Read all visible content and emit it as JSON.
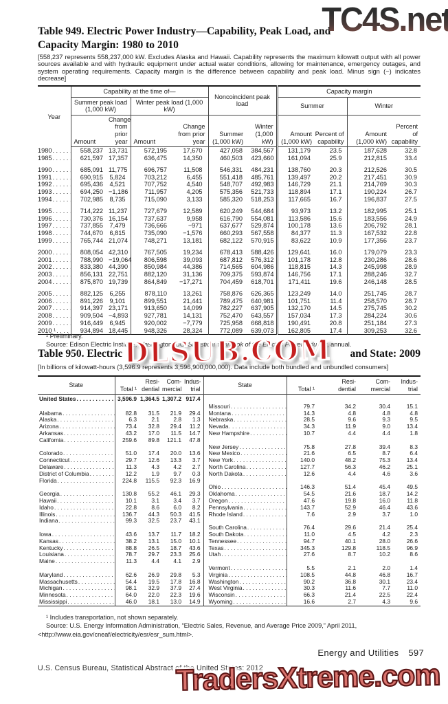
{
  "watermarks": {
    "top_right": "TC4S.net",
    "middle": "DLSUB.COM",
    "bottom": "TradersXtreme.com"
  },
  "colors": {
    "watermark_red": "#c51f1f",
    "watermark_salmon": "#d9736d",
    "watermark_dark_red": "#5c1616",
    "watermark_gray": "#2e2e2e"
  },
  "dot_leader": ". . . . . . . . . . . . . . . . . . . . . . . . . . . . . . . . . . . . . . . .",
  "table949": {
    "title_line1": "Table 949. Electric Power Industry—Capability, Peak Load, and",
    "title_line2": "Capacity Margin: 1980 to 2010",
    "note": "[558,237 represents 558,237,000 kW. Excludes Alaska and Hawaii. Capability represents the maximum kilowatt output with all power sources available and with hydraulic equipment under actual water conditions, allowing for maintenance, emergency outages, and system operating requirements. Capacity margin is the difference between capability and peak load. Minus sign (−) indicates decrease]",
    "header": {
      "year": "Year",
      "capability_group": "Capability at the time of—",
      "noncoincident_group": "Noncoincident peak load",
      "capacity_margin_group": "Capacity margin",
      "summer_peak": "Summer peak load (1,000 kW)",
      "winter_peak": "Winter peak load (1,000 kW)",
      "summer": "Summer",
      "winter": "Winter",
      "amount": "Amount",
      "change": "Change from prior year",
      "summer_kw": "Summer (1,000 kW)",
      "winter_kw": "Winter (1,000 kW)",
      "amount_kw": "Amount (1,000 kW)",
      "percent": "Percent of capability"
    },
    "group_starts": [
      2,
      7,
      12,
      17
    ],
    "rows": [
      [
        "1980",
        "558,237",
        "13,731",
        "572,195",
        "17,670",
        "427,058",
        "384,567",
        "131,179",
        "23.5",
        "187,628",
        "32.8"
      ],
      [
        "1985",
        "621,597",
        "17,357",
        "636,475",
        "14,350",
        "460,503",
        "423,660",
        "161,094",
        "25.9",
        "212,815",
        "33.4"
      ],
      [
        "1990",
        "685,091",
        "11,775",
        "696,757",
        "11,508",
        "546,331",
        "484,231",
        "138,760",
        "20.3",
        "212,526",
        "30.5"
      ],
      [
        "1991",
        "690,915",
        "5,824",
        "703,212",
        "6,455",
        "551,418",
        "485,761",
        "139,497",
        "20.2",
        "217,451",
        "30.9"
      ],
      [
        "1992",
        "695,436",
        "4,521",
        "707,752",
        "4,540",
        "548,707",
        "492,983",
        "146,729",
        "21.1",
        "214,769",
        "30.3"
      ],
      [
        "1993",
        "694,250",
        "−1,186",
        "711,957",
        "4,205",
        "575,356",
        "521,733",
        "118,894",
        "17.1",
        "190,224",
        "26.7"
      ],
      [
        "1994",
        "702,985",
        "8,735",
        "715,090",
        "3,133",
        "585,320",
        "518,253",
        "117,665",
        "16.7",
        "196,837",
        "27.5"
      ],
      [
        "1995",
        "714,222",
        "11,237",
        "727,679",
        "12,589",
        "620,249",
        "544,684",
        "93,973",
        "13.2",
        "182,995",
        "25.1"
      ],
      [
        "1996",
        "730,376",
        "16,154",
        "737,637",
        "9,958",
        "616,790",
        "554,081",
        "113,586",
        "15.6",
        "183,556",
        "24.9"
      ],
      [
        "1997",
        "737,855",
        "7,479",
        "736,666",
        "−971",
        "637,677",
        "529,874",
        "100,178",
        "13.6",
        "206,792",
        "28.1"
      ],
      [
        "1998",
        "744,670",
        "6,815",
        "735,090",
        "−1,576",
        "660,293",
        "567,558",
        "84,377",
        "11.3",
        "167,532",
        "22.8"
      ],
      [
        "1999",
        "765,744",
        "21,074",
        "748,271",
        "13,181",
        "682,122",
        "570,915",
        "83,622",
        "10.9",
        "177,356",
        "23.7"
      ],
      [
        "2000",
        "808,054",
        "42,310",
        "767,505",
        "19,234",
        "678,413",
        "588,426",
        "129,641",
        "16.0",
        "179,079",
        "23.3"
      ],
      [
        "2001",
        "788,990",
        "−19,064",
        "806,598",
        "39,093",
        "687,812",
        "576,312",
        "101,178",
        "12.8",
        "230,286",
        "28.6"
      ],
      [
        "2002",
        "833,380",
        "44,390",
        "850,984",
        "44,386",
        "714,565",
        "604,986",
        "118,815",
        "14.3",
        "245,998",
        "28.9"
      ],
      [
        "2003",
        "856,131",
        "22,751",
        "882,120",
        "31,136",
        "709,375",
        "593,874",
        "146,756",
        "17.1",
        "288,246",
        "32.7"
      ],
      [
        "2004",
        "875,870",
        "19,739",
        "864,849",
        "−17,271",
        "704,459",
        "618,701",
        "171,411",
        "19.6",
        "246,148",
        "28.5"
      ],
      [
        "2005",
        "882,125",
        "6,255",
        "878,110",
        "13,261",
        "758,876",
        "626,365",
        "123,249",
        "14.0",
        "251,745",
        "28.7"
      ],
      [
        "2006",
        "891,226",
        "9,101",
        "899,551",
        "21,441",
        "789,475",
        "640,981",
        "101,751",
        "11.4",
        "258,570",
        "28.7"
      ],
      [
        "2007",
        "914,397",
        "23,171",
        "913,650",
        "14,099",
        "782,227",
        "637,905",
        "132,170",
        "14.5",
        "275,745",
        "30.2"
      ],
      [
        "2008",
        "909,504",
        "−4,893",
        "927,781",
        "14,131",
        "752,470",
        "643,557",
        "157,034",
        "17.3",
        "284,224",
        "30.6"
      ],
      [
        "2009",
        "916,449",
        "6,945",
        "920,002",
        "−7,779",
        "725,958",
        "668,818",
        "190,491",
        "20.8",
        "251,184",
        "27.3"
      ],
      [
        "2010 ¹",
        "934,894",
        "18,445",
        "948,326",
        "28,324",
        "772,089",
        "639,073",
        "162,805",
        "17.4",
        "309,253",
        "32.6"
      ]
    ],
    "footnote": "¹ Preliminary.",
    "source_prefix": "Source: Edison Electric Institute, Washington, DC, ",
    "source_italic": "Statistical Yearbook of the Electric Power Industry",
    "source_suffix": ", annual."
  },
  "table950": {
    "title_left": "Table 950. Electric",
    "title_right": "and State: 2009",
    "note": "[In billions of kilowatt-hours (3,596.9 represents 3,596,900,000,000). Data include both bundled and unbundled consumers]",
    "header": {
      "state": "State",
      "total": "Total ¹",
      "res1": "Resi-",
      "res2": "dential",
      "com1": "Com-",
      "com2": "mercial",
      "ind1": "Indus-",
      "ind2": "trial"
    },
    "rows": [
      [
        "United States",
        "3,596.9",
        "1,364.5",
        "1,307.2",
        "917.4",
        "",
        "",
        "",
        "",
        ""
      ],
      [
        "",
        "",
        "",
        "",
        "",
        "Missouri",
        "79.7",
        "34.2",
        "30.4",
        "15.1"
      ],
      [
        "Alabama",
        "82.8",
        "31.5",
        "21.9",
        "29.4",
        "Montana",
        "14.3",
        "4.8",
        "4.8",
        "4.8"
      ],
      [
        "Alaska",
        "6.3",
        "2.1",
        "2.8",
        "1.3",
        "Nebraska",
        "28.5",
        "9.6",
        "9.3",
        "9.5"
      ],
      [
        "Arizona",
        "73.4",
        "32.8",
        "29.4",
        "11.2",
        "Nevada",
        "34.3",
        "11.9",
        "9.0",
        "13.4"
      ],
      [
        "Arkansas",
        "43.2",
        "17.0",
        "11.5",
        "14.7",
        "New Hampshire",
        "10.7",
        "4.4",
        "4.4",
        "1.8"
      ],
      [
        "California",
        "259.6",
        "89.8",
        "121.1",
        "47.8",
        "",
        "",
        "",
        "",
        ""
      ],
      [
        "",
        "",
        "",
        "",
        "",
        "New Jersey",
        "75.8",
        "27.8",
        "39.4",
        "8.3"
      ],
      [
        "Colorado",
        "51.0",
        "17.4",
        "20.0",
        "13.6",
        "New Mexico",
        "21.6",
        "6.5",
        "8.7",
        "6.4"
      ],
      [
        "Connecticut",
        "29.7",
        "12.6",
        "13.3",
        "3.7",
        "New York",
        "140.0",
        "48.2",
        "75.3",
        "13.4"
      ],
      [
        "Delaware",
        "11.3",
        "4.3",
        "4.2",
        "2.7",
        "North Carolina",
        "127.7",
        "56.3",
        "46.2",
        "25.1"
      ],
      [
        "District of Columbia",
        "12.2",
        "1.9",
        "9.7",
        "0.3",
        "North Dakota",
        "12.6",
        "4.4",
        "4.6",
        "3.6"
      ],
      [
        "Florida",
        "224.8",
        "115.5",
        "92.3",
        "16.9",
        "",
        "",
        "",
        "",
        ""
      ],
      [
        "",
        "",
        "",
        "",
        "",
        "Ohio",
        "146.3",
        "51.4",
        "45.4",
        "49.5"
      ],
      [
        "Georgia",
        "130.8",
        "55.2",
        "46.1",
        "29.3",
        "Oklahoma",
        "54.5",
        "21.6",
        "18.7",
        "14.2"
      ],
      [
        "Hawaii",
        "10.1",
        "3.1",
        "3.4",
        "3.7",
        "Oregon",
        "47.6",
        "19.8",
        "16.0",
        "11.8"
      ],
      [
        "Idaho",
        "22.8",
        "8.6",
        "6.0",
        "8.2",
        "Pennsylvania",
        "143.7",
        "52.9",
        "46.4",
        "43.6"
      ],
      [
        "Illinois",
        "136.7",
        "44.3",
        "50.3",
        "41.5",
        "Rhode Island",
        "7.6",
        "2.9",
        "3.7",
        "1.0"
      ],
      [
        "Indiana",
        "99.3",
        "32.5",
        "23.7",
        "43.1",
        "",
        "",
        "",
        "",
        ""
      ],
      [
        "",
        "",
        "",
        "",
        "",
        "South Carolina",
        "76.4",
        "29.6",
        "21.4",
        "25.4"
      ],
      [
        "Iowa",
        "43.6",
        "13.7",
        "11.7",
        "18.2",
        "South Dakota",
        "11.0",
        "4.5",
        "4.2",
        "2.3"
      ],
      [
        "Kansas",
        "38.2",
        "13.1",
        "15.0",
        "10.1",
        "Tennessee",
        "94.7",
        "40.1",
        "28.0",
        "26.6"
      ],
      [
        "Kentucky",
        "88.8",
        "26.5",
        "18.7",
        "43.6",
        "Texas",
        "345.3",
        "129.8",
        "118.5",
        "96.9"
      ],
      [
        "Louisiana",
        "78.7",
        "29.7",
        "23.3",
        "25.6",
        "Utah",
        "27.6",
        "8.7",
        "10.2",
        "8.6"
      ],
      [
        "Maine",
        "11.3",
        "4.4",
        "4.1",
        "2.9",
        "",
        "",
        "",
        "",
        ""
      ],
      [
        "",
        "",
        "",
        "",
        "",
        "Vermont",
        "5.5",
        "2.1",
        "2.0",
        "1.4"
      ],
      [
        "Maryland",
        "62.6",
        "26.9",
        "29.8",
        "5.3",
        "Virginia",
        "108.5",
        "44.8",
        "46.8",
        "16.7"
      ],
      [
        "Massachusetts",
        "54.4",
        "19.5",
        "17.8",
        "16.8",
        "Washington",
        "90.2",
        "36.8",
        "30.1",
        "23.4"
      ],
      [
        "Michigan",
        "98.1",
        "32.9",
        "37.9",
        "27.4",
        "West Virginia",
        "30.3",
        "11.6",
        "7.7",
        "11.0"
      ],
      [
        "Minnesota",
        "64.0",
        "22.0",
        "22.3",
        "19.6",
        "Wisconsin",
        "66.3",
        "21.4",
        "22.5",
        "22.4"
      ],
      [
        "Mississippi",
        "46.0",
        "18.1",
        "13.0",
        "14.9",
        "Wyoming",
        "16.6",
        "2.7",
        "4.3",
        "9.6"
      ]
    ],
    "footnote": "¹ Includes transportation, not shown separately.",
    "source_line1": "Source: U.S. Energy Information Administration, “Electric Sales, Revenue, and Average Price 2009,” April 2011,",
    "source_line2": "<http://www.eia.gov/cneaf/electricity/esr/esr_sum.html>."
  },
  "footer": {
    "section": "Energy and Utilities",
    "page": "597",
    "publication": "U.S. Census Bureau, Statistical Abstract of the United States: 2012"
  }
}
